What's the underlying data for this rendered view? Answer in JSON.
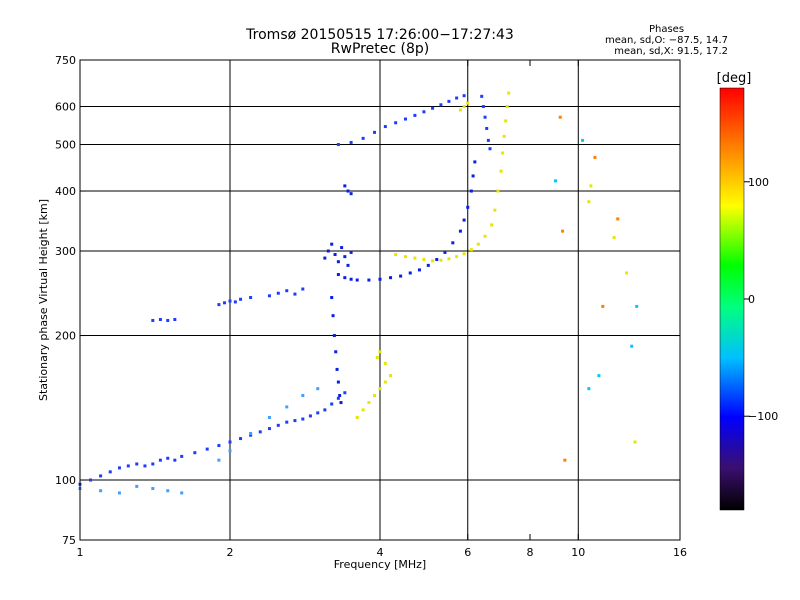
{
  "header": {
    "title_line1": "Tromsø 20150515 17:26:00−17:27:43",
    "title_line2": "RwPretec (8p)"
  },
  "phases_box": {
    "heading": "Phases",
    "line_o": "mean, sd,O: −87.5, 14.7",
    "line_x": "mean, sd,X:  91.5, 17.2"
  },
  "colorbar": {
    "label": "[deg]",
    "ticks": [
      "100",
      "0",
      "−100"
    ],
    "tick_values": [
      100,
      0,
      -100
    ],
    "range": [
      -180,
      180
    ],
    "colors": [
      "#000000",
      "#3b0f70",
      "#0000ff",
      "#00bfff",
      "#00ff80",
      "#00ff00",
      "#ffff00",
      "#ff8000",
      "#ff0000"
    ]
  },
  "chart_data": {
    "type": "scatter",
    "xlabel": "Frequency [MHz]",
    "ylabel": "Stationary phase Virtual Height [km]",
    "xscale": "log",
    "yscale": "log",
    "xlim": [
      1,
      16
    ],
    "ylim": [
      75,
      750
    ],
    "x_ticks": [
      1,
      2,
      4,
      6,
      8,
      10,
      16
    ],
    "x_tick_labels": [
      "1",
      "2",
      "4",
      "6",
      "8",
      "10",
      "16"
    ],
    "y_ticks": [
      75,
      100,
      200,
      300,
      400,
      500,
      600,
      750
    ],
    "y_tick_labels": [
      "75",
      "100",
      "200",
      "300",
      "400",
      "500",
      "600",
      "750"
    ],
    "grid_x": [
      2,
      4,
      6,
      10
    ],
    "grid_y": [
      100,
      200,
      300,
      400,
      500,
      600
    ],
    "series": [
      {
        "color": "#1e3cff",
        "points": [
          [
            1.0,
            98
          ],
          [
            1.05,
            100
          ],
          [
            1.1,
            102
          ],
          [
            1.15,
            104
          ],
          [
            1.2,
            106
          ],
          [
            1.25,
            107
          ],
          [
            1.3,
            108
          ],
          [
            1.35,
            107
          ],
          [
            1.4,
            108
          ],
          [
            1.45,
            110
          ],
          [
            1.5,
            111
          ],
          [
            1.55,
            110
          ],
          [
            1.6,
            112
          ],
          [
            1.7,
            114
          ],
          [
            1.8,
            116
          ],
          [
            1.9,
            118
          ],
          [
            2.0,
            120
          ],
          [
            2.1,
            122
          ],
          [
            2.2,
            124
          ],
          [
            2.3,
            126
          ],
          [
            2.4,
            128
          ],
          [
            2.5,
            130
          ],
          [
            2.6,
            132
          ],
          [
            2.7,
            133
          ],
          [
            2.8,
            134
          ],
          [
            2.9,
            136
          ],
          [
            3.0,
            138
          ],
          [
            3.1,
            140
          ],
          [
            3.2,
            144
          ],
          [
            3.3,
            148
          ],
          [
            3.4,
            152
          ]
        ]
      },
      {
        "color": "#1e3cff",
        "points": [
          [
            1.4,
            215
          ],
          [
            1.45,
            216
          ],
          [
            1.5,
            215
          ],
          [
            1.55,
            216
          ],
          [
            1.9,
            232
          ],
          [
            1.95,
            234
          ],
          [
            2.0,
            236
          ],
          [
            2.05,
            235
          ],
          [
            2.1,
            238
          ],
          [
            2.2,
            240
          ],
          [
            2.4,
            242
          ],
          [
            2.5,
            245
          ],
          [
            2.6,
            248
          ],
          [
            2.7,
            244
          ],
          [
            2.8,
            250
          ]
        ]
      },
      {
        "color": "#0a1ee6",
        "points": [
          [
            3.3,
            268
          ],
          [
            3.4,
            264
          ],
          [
            3.5,
            262
          ],
          [
            3.6,
            261
          ],
          [
            3.8,
            261
          ],
          [
            4.0,
            262
          ],
          [
            4.2,
            264
          ],
          [
            4.4,
            266
          ],
          [
            4.6,
            270
          ],
          [
            4.8,
            274
          ],
          [
            5.0,
            280
          ],
          [
            5.2,
            288
          ],
          [
            5.4,
            298
          ],
          [
            5.6,
            312
          ],
          [
            5.8,
            330
          ],
          [
            5.9,
            348
          ],
          [
            6.0,
            370
          ],
          [
            6.1,
            400
          ],
          [
            6.15,
            430
          ],
          [
            6.2,
            460
          ]
        ]
      },
      {
        "color": "#0a1ee6",
        "points": [
          [
            3.1,
            290
          ],
          [
            3.15,
            300
          ],
          [
            3.2,
            310
          ],
          [
            3.25,
            295
          ],
          [
            3.3,
            285
          ],
          [
            3.35,
            305
          ],
          [
            3.4,
            292
          ],
          [
            3.45,
            280
          ],
          [
            3.5,
            298
          ],
          [
            3.2,
            240
          ],
          [
            3.22,
            220
          ],
          [
            3.24,
            200
          ],
          [
            3.26,
            185
          ],
          [
            3.28,
            170
          ],
          [
            3.3,
            160
          ],
          [
            3.32,
            150
          ],
          [
            3.34,
            145
          ],
          [
            3.4,
            410
          ],
          [
            3.45,
            400
          ],
          [
            3.5,
            395
          ]
        ]
      },
      {
        "color": "#1e3cff",
        "points": [
          [
            3.3,
            500
          ],
          [
            3.5,
            505
          ],
          [
            3.7,
            515
          ],
          [
            3.9,
            530
          ],
          [
            4.1,
            545
          ],
          [
            4.3,
            555
          ],
          [
            4.5,
            565
          ],
          [
            4.7,
            575
          ],
          [
            4.9,
            585
          ],
          [
            5.1,
            595
          ],
          [
            5.3,
            605
          ],
          [
            5.5,
            615
          ],
          [
            5.7,
            625
          ],
          [
            5.9,
            632
          ],
          [
            6.4,
            630
          ],
          [
            6.45,
            600
          ],
          [
            6.5,
            570
          ],
          [
            6.55,
            540
          ],
          [
            6.6,
            510
          ],
          [
            6.65,
            490
          ]
        ]
      },
      {
        "color": "#e6e600",
        "points": [
          [
            3.6,
            135
          ],
          [
            3.7,
            140
          ],
          [
            3.8,
            145
          ],
          [
            3.9,
            150
          ],
          [
            4.0,
            155
          ],
          [
            4.1,
            160
          ],
          [
            4.2,
            165
          ],
          [
            3.95,
            180
          ],
          [
            4.0,
            185
          ],
          [
            4.1,
            175
          ],
          [
            4.3,
            295
          ],
          [
            4.5,
            292
          ],
          [
            4.7,
            290
          ],
          [
            4.9,
            288
          ],
          [
            5.1,
            286
          ],
          [
            5.3,
            287
          ],
          [
            5.5,
            289
          ],
          [
            5.7,
            292
          ],
          [
            5.9,
            296
          ],
          [
            6.1,
            302
          ],
          [
            6.3,
            310
          ],
          [
            6.5,
            322
          ],
          [
            6.7,
            340
          ],
          [
            6.8,
            365
          ],
          [
            6.9,
            400
          ],
          [
            7.0,
            440
          ],
          [
            7.05,
            480
          ],
          [
            7.1,
            520
          ],
          [
            7.15,
            560
          ],
          [
            7.2,
            600
          ],
          [
            7.25,
            640
          ],
          [
            5.8,
            590
          ],
          [
            5.9,
            600
          ],
          [
            6.0,
            610
          ]
        ]
      },
      {
        "color": "#3fa0ff",
        "points": [
          [
            1.0,
            96
          ],
          [
            1.1,
            95
          ],
          [
            1.2,
            94
          ],
          [
            1.3,
            97
          ],
          [
            1.4,
            96
          ],
          [
            1.5,
            95
          ],
          [
            1.6,
            94
          ],
          [
            1.9,
            110
          ],
          [
            2.0,
            115
          ],
          [
            2.2,
            125
          ],
          [
            2.4,
            135
          ],
          [
            2.6,
            142
          ],
          [
            2.8,
            150
          ],
          [
            3.0,
            155
          ]
        ]
      },
      {
        "color": "#e6e600",
        "points": [
          [
            10.5,
            380
          ],
          [
            10.6,
            410
          ],
          [
            11.8,
            320
          ],
          [
            12.5,
            270
          ],
          [
            13.0,
            120
          ]
        ]
      },
      {
        "color": "#ff8000",
        "points": [
          [
            9.2,
            570
          ],
          [
            9.3,
            330
          ],
          [
            9.4,
            110
          ],
          [
            10.8,
            470
          ],
          [
            11.2,
            230
          ],
          [
            12.0,
            350
          ]
        ]
      },
      {
        "color": "#00c8ff",
        "points": [
          [
            9.0,
            420
          ],
          [
            10.2,
            510
          ],
          [
            10.5,
            155
          ],
          [
            11.0,
            165
          ],
          [
            12.8,
            190
          ],
          [
            13.1,
            230
          ]
        ]
      }
    ]
  }
}
